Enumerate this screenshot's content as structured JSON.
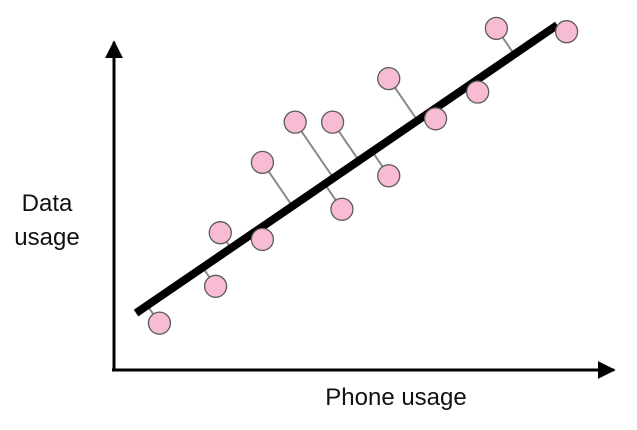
{
  "chart_data": {
    "type": "scatter",
    "title": "",
    "xlabel": "Phone usage",
    "ylabel_lines": [
      "Data",
      "usage"
    ],
    "xlim": [
      0,
      100
    ],
    "ylim": [
      0,
      100
    ],
    "grid": false,
    "fit_line": {
      "x": [
        3,
        93
      ],
      "y": [
        14,
        100
      ]
    },
    "points": [
      {
        "x": 8,
        "y": 11
      },
      {
        "x": 20,
        "y": 22
      },
      {
        "x": 21,
        "y": 38
      },
      {
        "x": 30,
        "y": 36
      },
      {
        "x": 30,
        "y": 59
      },
      {
        "x": 37,
        "y": 71
      },
      {
        "x": 47,
        "y": 45
      },
      {
        "x": 45,
        "y": 71
      },
      {
        "x": 57,
        "y": 55
      },
      {
        "x": 57,
        "y": 84
      },
      {
        "x": 67,
        "y": 72
      },
      {
        "x": 76,
        "y": 80
      },
      {
        "x": 80,
        "y": 99
      },
      {
        "x": 95,
        "y": 98
      }
    ],
    "colors": {
      "point_fill": "#f7bcd3",
      "point_stroke": "#5a5a5a",
      "residual": "#8a8a8a",
      "fit_line": "#000000",
      "axis": "#000000"
    }
  }
}
